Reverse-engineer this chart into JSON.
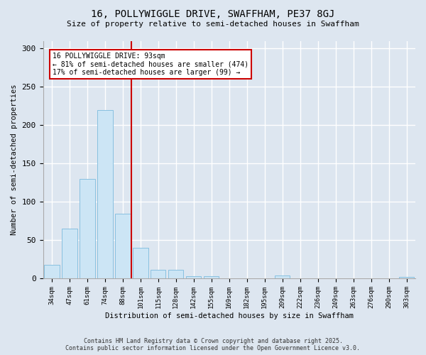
{
  "title_line1": "16, POLLYWIGGLE DRIVE, SWAFFHAM, PE37 8GJ",
  "title_line2": "Size of property relative to semi-detached houses in Swaffham",
  "xlabel": "Distribution of semi-detached houses by size in Swaffham",
  "ylabel": "Number of semi-detached properties",
  "bar_labels": [
    "34sqm",
    "47sqm",
    "61sqm",
    "74sqm",
    "88sqm",
    "101sqm",
    "115sqm",
    "128sqm",
    "142sqm",
    "155sqm",
    "169sqm",
    "182sqm",
    "195sqm",
    "209sqm",
    "222sqm",
    "236sqm",
    "249sqm",
    "263sqm",
    "276sqm",
    "290sqm",
    "303sqm"
  ],
  "bar_heights": [
    18,
    65,
    130,
    220,
    85,
    40,
    12,
    12,
    3,
    3,
    0,
    0,
    0,
    4,
    0,
    0,
    0,
    0,
    0,
    0,
    2
  ],
  "bar_color": "#cce5f5",
  "bar_edge_color": "#88c0e0",
  "vline_x": 4.5,
  "vline_color": "#cc0000",
  "annotation_text": "16 POLLYWIGGLE DRIVE: 93sqm\n← 81% of semi-detached houses are smaller (474)\n17% of semi-detached houses are larger (99) →",
  "annotation_box_color": "#ffffff",
  "annotation_box_edge": "#cc0000",
  "ylim": [
    0,
    310
  ],
  "yticks": [
    0,
    50,
    100,
    150,
    200,
    250,
    300
  ],
  "background_color": "#dde6f0",
  "grid_color": "#ffffff",
  "footer_line1": "Contains HM Land Registry data © Crown copyright and database right 2025.",
  "footer_line2": "Contains public sector information licensed under the Open Government Licence v3.0."
}
